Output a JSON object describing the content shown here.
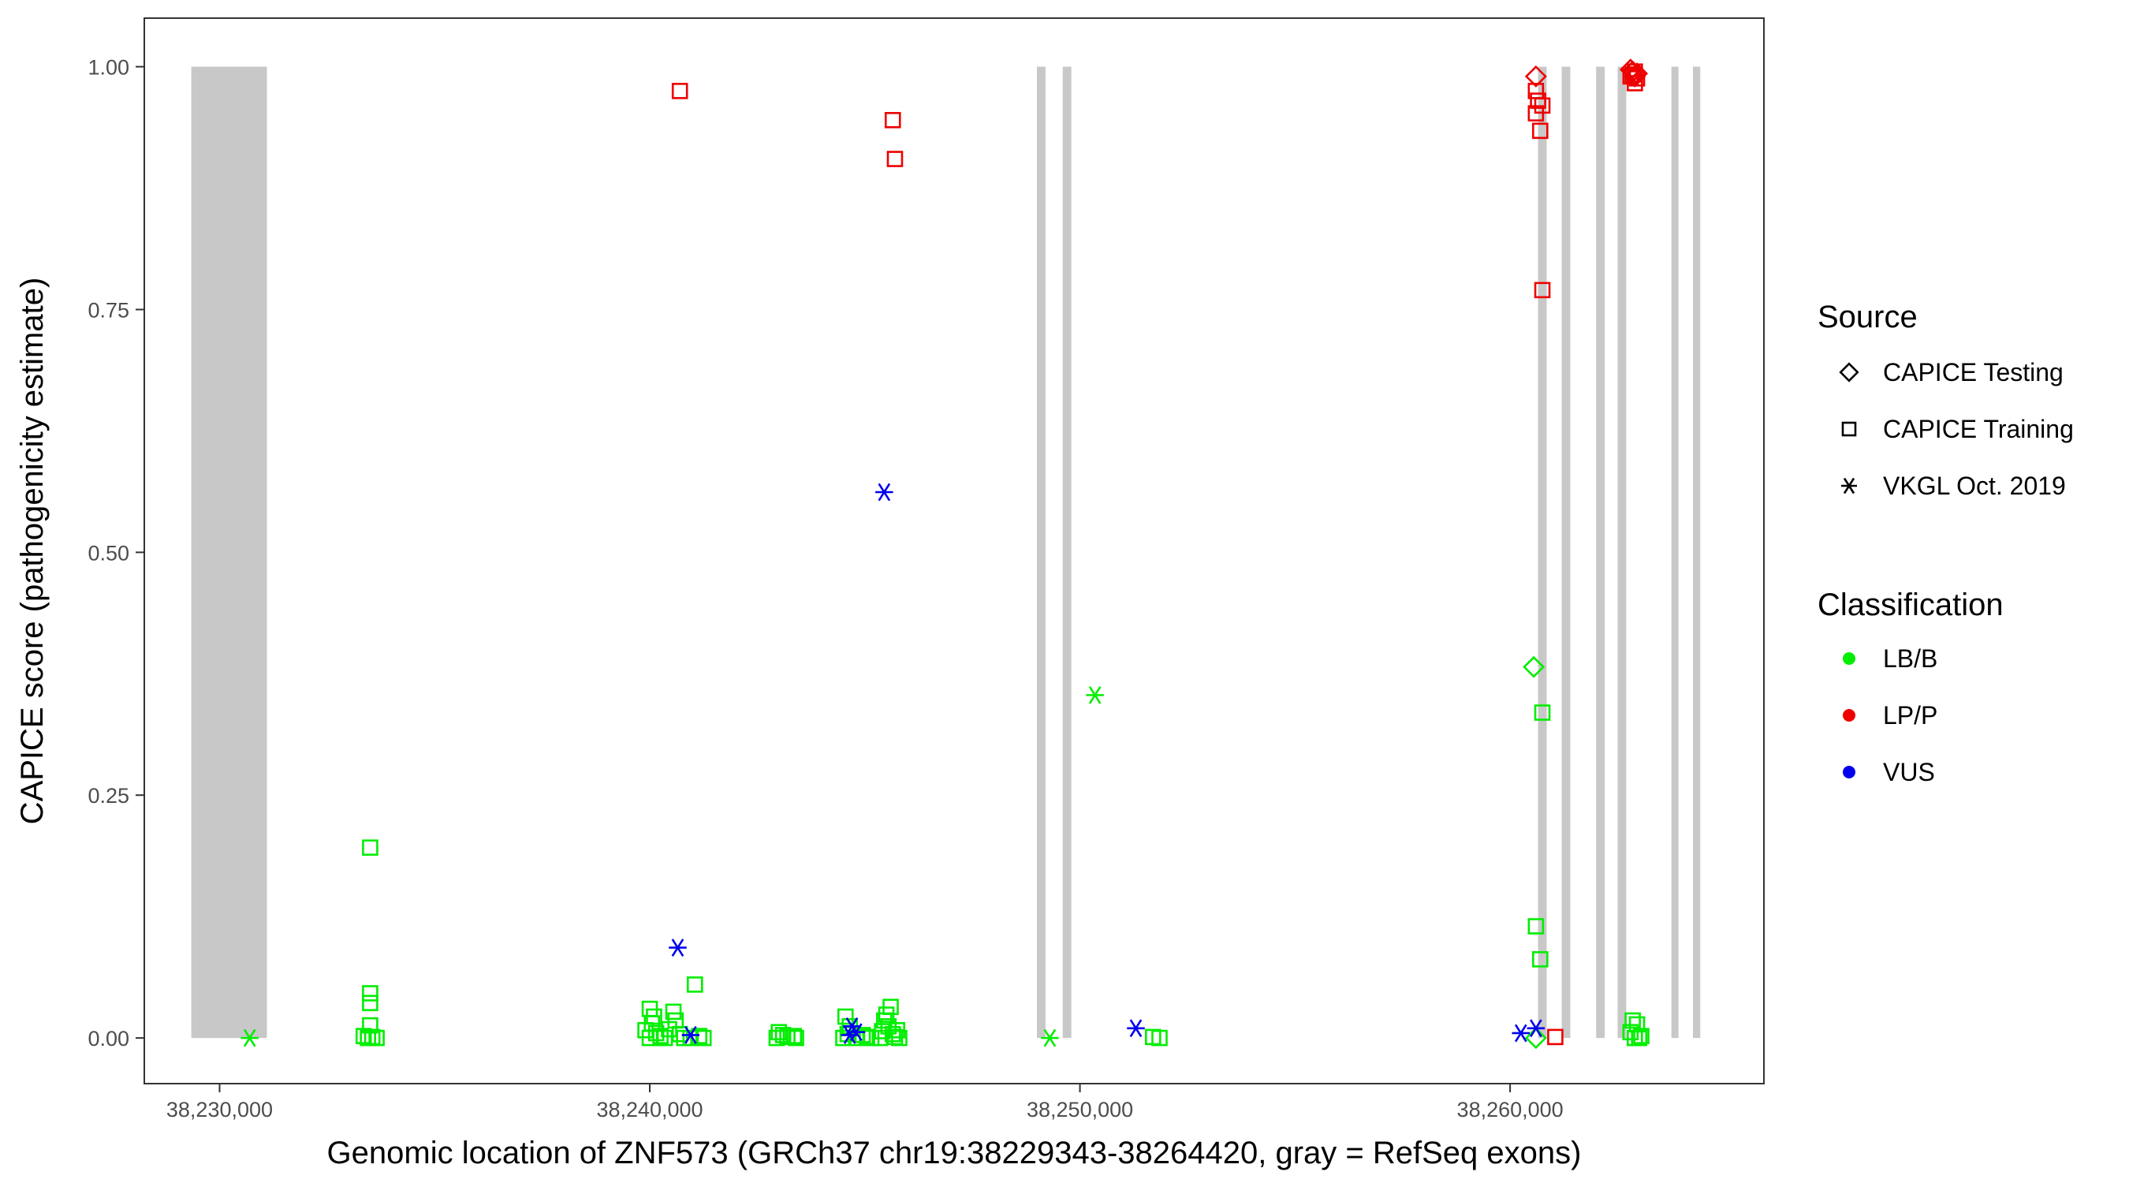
{
  "chart_data": {
    "type": "scatter",
    "title": "",
    "xlabel": "Genomic location of ZNF573 (GRCh37 chr19:38229343-38264420, gray = RefSeq exons)",
    "ylabel": "CAPICE score (pathogenicity estimate)",
    "xlim": [
      38228250,
      38265900
    ],
    "ylim": [
      -0.047,
      1.05
    ],
    "xticks": [
      38230000,
      38240000,
      38250000,
      38260000
    ],
    "xtick_labels": [
      "38,230,000",
      "38,240,000",
      "38,250,000",
      "38,260,000"
    ],
    "yticks": [
      0,
      0.25,
      0.5,
      0.75,
      1.0
    ],
    "ytick_labels": [
      "0.00",
      "0.25",
      "0.50",
      "0.75",
      "1.00"
    ],
    "grid": false,
    "background": "#ffffff",
    "exons": [
      [
        38229343,
        38231100
      ],
      [
        38249000,
        38249200
      ],
      [
        38249600,
        38249800
      ],
      [
        38260650,
        38260850
      ],
      [
        38261200,
        38261400
      ],
      [
        38262000,
        38262200
      ],
      [
        38262500,
        38262700
      ],
      [
        38263750,
        38263900
      ],
      [
        38264250,
        38264420
      ]
    ],
    "exon_color": "#c8c8c8",
    "legend": {
      "placement": "right",
      "source_title": "Source",
      "source_entries": [
        {
          "label": "CAPICE Testing",
          "shape": "diamond"
        },
        {
          "label": "CAPICE Training",
          "shape": "square"
        },
        {
          "label": "VKGL Oct. 2019",
          "shape": "asterisk"
        }
      ],
      "class_title": "Classification",
      "class_entries": [
        {
          "label": "LB/B",
          "color": "#00ee00"
        },
        {
          "label": "LP/P",
          "color": "#ee0000"
        },
        {
          "label": "VUS",
          "color": "#0000ee"
        }
      ]
    },
    "series": [
      {
        "source": "CAPICE Training",
        "classification": "LB/B",
        "points": [
          [
            38233500,
            0.196
          ],
          [
            38233500,
            0.046
          ],
          [
            38233500,
            0.036
          ],
          [
            38233500,
            0.013
          ],
          [
            38233350,
            0.002
          ],
          [
            38233450,
            0.0
          ],
          [
            38233650,
            0.0
          ],
          [
            38233550,
            0.001
          ],
          [
            38240000,
            0.03
          ],
          [
            38240100,
            0.022
          ],
          [
            38240050,
            0.015
          ],
          [
            38239900,
            0.008
          ],
          [
            38240150,
            0.005
          ],
          [
            38240250,
            0.002
          ],
          [
            38240000,
            0.0
          ],
          [
            38240350,
            0.0
          ],
          [
            38240550,
            0.027
          ],
          [
            38240600,
            0.018
          ],
          [
            38240450,
            0.009
          ],
          [
            38240700,
            0.004
          ],
          [
            38240800,
            0.0
          ],
          [
            38240950,
            0.0
          ],
          [
            38241050,
            0.055
          ],
          [
            38241150,
            0.002
          ],
          [
            38241250,
            0.0
          ],
          [
            38243000,
            0.006
          ],
          [
            38243100,
            0.003
          ],
          [
            38242950,
            0.0
          ],
          [
            38243200,
            0.001
          ],
          [
            38243400,
            0.0
          ],
          [
            38243350,
            0.002
          ],
          [
            38244550,
            0.022
          ],
          [
            38244650,
            0.012
          ],
          [
            38244600,
            0.004
          ],
          [
            38244500,
            0.0
          ],
          [
            38244800,
            0.0
          ],
          [
            38245050,
            0.001
          ],
          [
            38245150,
            0.0
          ],
          [
            38244950,
            0.003
          ],
          [
            38245600,
            0.032
          ],
          [
            38245500,
            0.024
          ],
          [
            38245450,
            0.018
          ],
          [
            38245550,
            0.012
          ],
          [
            38245400,
            0.007
          ],
          [
            38245650,
            0.004
          ],
          [
            38245350,
            0.0
          ],
          [
            38245700,
            0.001
          ],
          [
            38245800,
            0.0
          ],
          [
            38245750,
            0.008
          ],
          [
            38251700,
            0.001
          ],
          [
            38251850,
            0.0
          ],
          [
            38260600,
            0.115
          ],
          [
            38260700,
            0.081
          ],
          [
            38260750,
            0.335
          ],
          [
            38262850,
            0.018
          ],
          [
            38262950,
            0.014
          ],
          [
            38262800,
            0.006
          ],
          [
            38262900,
            0.0
          ],
          [
            38263050,
            0.002
          ],
          [
            38263000,
            0.0
          ]
        ]
      },
      {
        "source": "CAPICE Training",
        "classification": "LP/P",
        "points": [
          [
            38240700,
            0.975
          ],
          [
            38245650,
            0.945
          ],
          [
            38245700,
            0.905
          ],
          [
            38260600,
            0.975
          ],
          [
            38260650,
            0.965
          ],
          [
            38260750,
            0.96
          ],
          [
            38260600,
            0.952
          ],
          [
            38260700,
            0.934
          ],
          [
            38260750,
            0.77
          ],
          [
            38261050,
            0.001
          ],
          [
            38262900,
            0.995
          ],
          [
            38262850,
            0.992
          ],
          [
            38262950,
            0.988
          ],
          [
            38262900,
            0.983
          ],
          [
            38262800,
            0.99
          ]
        ]
      },
      {
        "source": "CAPICE Testing",
        "classification": "LB/B",
        "points": [
          [
            38260550,
            0.382
          ],
          [
            38260600,
            0.0
          ]
        ]
      },
      {
        "source": "CAPICE Testing",
        "classification": "LP/P",
        "points": [
          [
            38260600,
            0.99
          ],
          [
            38262850,
            0.995
          ],
          [
            38262950,
            0.993
          ],
          [
            38262900,
            0.99
          ],
          [
            38262800,
            0.997
          ]
        ]
      },
      {
        "source": "VKGL Oct. 2019",
        "classification": "LB/B",
        "points": [
          [
            38230700,
            0.0
          ],
          [
            38249300,
            0.0
          ],
          [
            38250350,
            0.353
          ]
        ]
      },
      {
        "source": "VKGL Oct. 2019",
        "classification": "VUS",
        "points": [
          [
            38240650,
            0.093
          ],
          [
            38240950,
            0.003
          ],
          [
            38244700,
            0.012
          ],
          [
            38244800,
            0.006
          ],
          [
            38244650,
            0.003
          ],
          [
            38245450,
            0.562
          ],
          [
            38251300,
            0.01
          ],
          [
            38260250,
            0.005
          ],
          [
            38260600,
            0.01
          ]
        ]
      }
    ]
  }
}
